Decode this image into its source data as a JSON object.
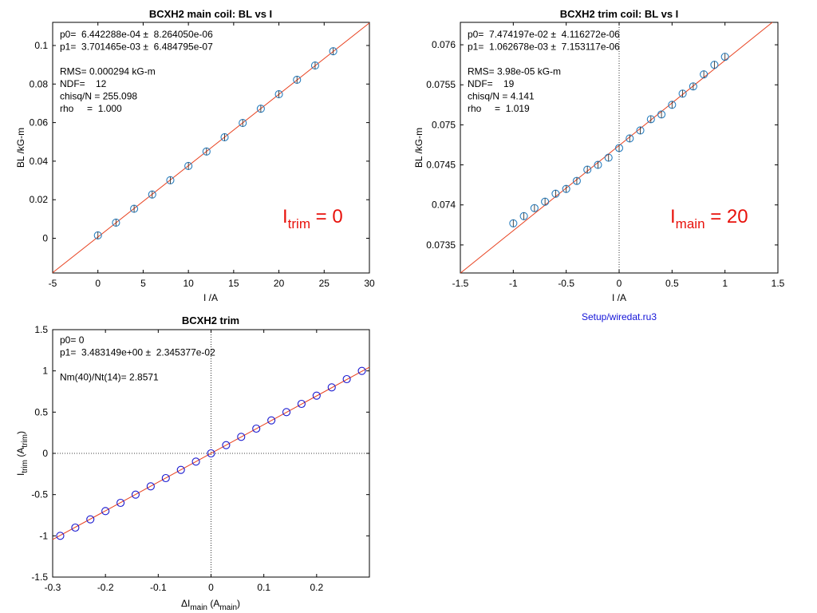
{
  "colors": {
    "fit_line": "#e8401e",
    "marker_main": "#2a7fbf",
    "marker_trim_panel": "#7a2ab0",
    "marker_interp": "#1a1ad0",
    "big_label": "#e8120c",
    "footer_link": "#1414d8"
  },
  "footer": {
    "text": "Setup/wiredat.ru3"
  },
  "chart_data": [
    {
      "type": "scatter",
      "title": "BCXH2 main coil: BL vs I",
      "xlabel": "I /A",
      "ylabel": "BL /kG-m",
      "xlim": [
        -5,
        30
      ],
      "ylim": [
        -0.018,
        0.112
      ],
      "xticks": [
        -5,
        0,
        5,
        10,
        15,
        20,
        25,
        30
      ],
      "yticks": [
        0,
        0.02,
        0.04,
        0.06,
        0.08,
        0.1
      ],
      "xtick_labels": [
        "-5",
        "0",
        "5",
        "10",
        "15",
        "20",
        "25",
        "30"
      ],
      "ytick_labels": [
        "0",
        "0.02",
        "0.04",
        "0.06",
        "0.08",
        "0.1"
      ],
      "fit": {
        "p0": 0.0006442288,
        "p1": 0.003701465
      },
      "stats_lines": [
        "p0=  6.442288e-04 ±  8.264050e-06",
        "p1=  3.701465e-03 ±  6.484795e-07",
        "",
        "RMS= 0.000294 kG-m",
        "NDF=    12",
        "chisq/N = 255.098",
        "rho     =  1.000"
      ],
      "annotation": {
        "main": "I",
        "sub": "trim",
        "rest": " = 0"
      },
      "series": [
        {
          "x": [
            0,
            2,
            4,
            6,
            8,
            10,
            12,
            14,
            16,
            18,
            20,
            22,
            24,
            26
          ],
          "y": [
            0.0015,
            0.0081,
            0.0153,
            0.0227,
            0.0301,
            0.0375,
            0.045,
            0.0524,
            0.0598,
            0.0672,
            0.0747,
            0.0822,
            0.0896,
            0.097
          ]
        }
      ]
    },
    {
      "type": "scatter",
      "title": "BCXH2 trim coil: BL vs I",
      "xlabel": "I /A",
      "ylabel": "BL /kG-m",
      "xlim": [
        -1.5,
        1.5
      ],
      "ylim": [
        0.07315,
        0.07628
      ],
      "xticks": [
        -1.5,
        -1,
        -0.5,
        0,
        0.5,
        1,
        1.5
      ],
      "yticks": [
        0.0735,
        0.074,
        0.0745,
        0.075,
        0.0755,
        0.076
      ],
      "xtick_labels": [
        "-1.5",
        "-1",
        "-0.5",
        "0",
        "0.5",
        "1",
        "1.5"
      ],
      "ytick_labels": [
        "0.0735",
        "0.074",
        "0.0745",
        "0.075",
        "0.0755",
        "0.076"
      ],
      "vline_x": 0,
      "fit": {
        "p0": 0.07474197,
        "p1": 0.001062678
      },
      "stats_lines": [
        "p0=  7.474197e-02 ±  4.116272e-06",
        "p1=  1.062678e-03 ±  7.153117e-06",
        "",
        "RMS= 3.98e-05 kG-m",
        "NDF=    19",
        "chisq/N = 4.141",
        "rho     =  1.019"
      ],
      "annotation": {
        "main": "I",
        "sub": "main",
        "rest": " = 20"
      },
      "series": [
        {
          "x": [
            -1,
            -0.9,
            -0.8,
            -0.7,
            -0.6,
            -0.5,
            -0.4,
            -0.3,
            -0.2,
            -0.1,
            0,
            0.1,
            0.2,
            0.3,
            0.4,
            0.5,
            0.6,
            0.7,
            0.8,
            0.9,
            1
          ],
          "y": [
            0.07377,
            0.07386,
            0.07396,
            0.07404,
            0.07414,
            0.0742,
            0.0743,
            0.07444,
            0.0745,
            0.07459,
            0.07471,
            0.07483,
            0.07493,
            0.07507,
            0.07513,
            0.07525,
            0.07539,
            0.07548,
            0.07563,
            0.07575,
            0.07585
          ]
        }
      ]
    },
    {
      "type": "scatter",
      "title": "BCXH2 trim",
      "xlabel_parts": {
        "pre": "ΔI",
        "sub": "main",
        "mid": " (A",
        "sub2": "main",
        "post": ")"
      },
      "ylabel_parts": {
        "pre": "I",
        "sub": "trim",
        "mid": " (A",
        "sub2": "trim",
        "post": ")"
      },
      "xlim": [
        -0.3,
        0.3
      ],
      "ylim": [
        -1.5,
        1.5
      ],
      "xticks": [
        -0.3,
        -0.2,
        -0.1,
        0,
        0.1,
        0.2
      ],
      "yticks": [
        -1.5,
        -1,
        -0.5,
        0,
        0.5,
        1,
        1.5
      ],
      "xtick_labels": [
        "-0.3",
        "-0.2",
        "-0.1",
        "0",
        "0.1",
        "0.2"
      ],
      "ytick_labels": [
        "-1.5",
        "-1",
        "-0.5",
        "0",
        "0.5",
        "1",
        "1.5"
      ],
      "vline_x": 0,
      "hline_y": 0,
      "fit": {
        "p0": 0,
        "p1": 3.483149
      },
      "stats_lines": [
        "p0= 0",
        "p1=  3.483149e+00 ±  2.345377e-02",
        "",
        "Nm(40)/Nt(14)= 2.8571"
      ],
      "series": [
        {
          "x": [
            -0.2857,
            -0.2571,
            -0.2286,
            -0.2,
            -0.1714,
            -0.1429,
            -0.1143,
            -0.0857,
            -0.0571,
            -0.0286,
            0,
            0.0286,
            0.0571,
            0.0857,
            0.1143,
            0.1429,
            0.1714,
            0.2,
            0.2286,
            0.2571,
            0.2857
          ],
          "y": [
            -1,
            -0.9,
            -0.8,
            -0.7,
            -0.6,
            -0.5,
            -0.4,
            -0.3,
            -0.2,
            -0.1,
            0,
            0.1,
            0.2,
            0.3,
            0.4,
            0.5,
            0.6,
            0.7,
            0.8,
            0.9,
            1
          ]
        }
      ]
    }
  ]
}
